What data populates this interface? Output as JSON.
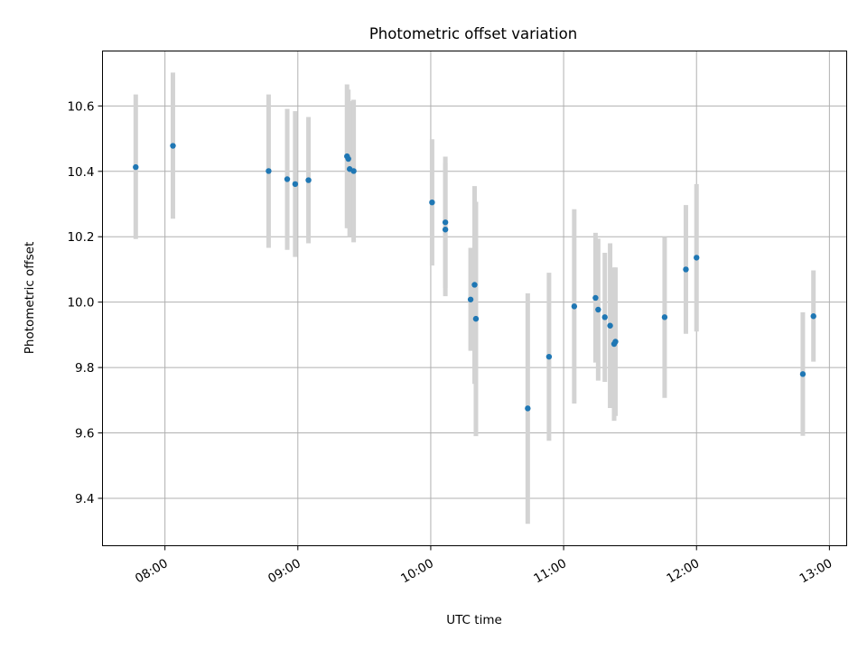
{
  "chart_data": {
    "type": "scatter",
    "title": "Photometric offset variation",
    "xlabel": "UTC time",
    "ylabel": "Photometric offset",
    "x_unit": "hours",
    "xlim": [
      7.53,
      13.13
    ],
    "ylim": [
      9.255,
      10.768
    ],
    "grid": true,
    "x_ticks": [
      {
        "value": 8.0,
        "label": "08:00"
      },
      {
        "value": 9.0,
        "label": "09:00"
      },
      {
        "value": 10.0,
        "label": "10:00"
      },
      {
        "value": 11.0,
        "label": "11:00"
      },
      {
        "value": 12.0,
        "label": "12:00"
      },
      {
        "value": 13.0,
        "label": "13:00"
      }
    ],
    "y_ticks": [
      {
        "value": 9.4,
        "label": "9.4"
      },
      {
        "value": 9.6,
        "label": "9.6"
      },
      {
        "value": 9.8,
        "label": "9.8"
      },
      {
        "value": 10.0,
        "label": "10.0"
      },
      {
        "value": 10.2,
        "label": "10.2"
      },
      {
        "value": 10.4,
        "label": "10.4"
      },
      {
        "value": 10.6,
        "label": "10.6"
      }
    ],
    "colors": {
      "point": "#1f77b4",
      "errorbar": "#d3d3d3"
    },
    "points": [
      {
        "x": 7.78,
        "y": 10.413,
        "ylow": 10.193,
        "yhigh": 10.635
      },
      {
        "x": 8.06,
        "y": 10.478,
        "ylow": 10.255,
        "yhigh": 10.702
      },
      {
        "x": 8.78,
        "y": 10.401,
        "ylow": 10.166,
        "yhigh": 10.635
      },
      {
        "x": 8.92,
        "y": 10.376,
        "ylow": 10.16,
        "yhigh": 10.591
      },
      {
        "x": 8.98,
        "y": 10.361,
        "ylow": 10.138,
        "yhigh": 10.584
      },
      {
        "x": 9.08,
        "y": 10.373,
        "ylow": 10.18,
        "yhigh": 10.566
      },
      {
        "x": 9.37,
        "y": 10.446,
        "ylow": 10.226,
        "yhigh": 10.666
      },
      {
        "x": 9.38,
        "y": 10.438,
        "ylow": 10.226,
        "yhigh": 10.65
      },
      {
        "x": 9.39,
        "y": 10.407,
        "ylow": 10.2,
        "yhigh": 10.615
      },
      {
        "x": 9.42,
        "y": 10.401,
        "ylow": 10.183,
        "yhigh": 10.619
      },
      {
        "x": 10.01,
        "y": 10.305,
        "ylow": 10.112,
        "yhigh": 10.498
      },
      {
        "x": 10.11,
        "y": 10.244,
        "ylow": 10.043,
        "yhigh": 10.445
      },
      {
        "x": 10.11,
        "y": 10.222,
        "ylow": 10.018,
        "yhigh": 10.426
      },
      {
        "x": 10.3,
        "y": 10.008,
        "ylow": 9.851,
        "yhigh": 10.166
      },
      {
        "x": 10.33,
        "y": 10.053,
        "ylow": 9.75,
        "yhigh": 10.355
      },
      {
        "x": 10.34,
        "y": 9.949,
        "ylow": 9.59,
        "yhigh": 10.307
      },
      {
        "x": 10.73,
        "y": 9.675,
        "ylow": 9.322,
        "yhigh": 10.027
      },
      {
        "x": 10.89,
        "y": 9.833,
        "ylow": 9.576,
        "yhigh": 10.09
      },
      {
        "x": 11.08,
        "y": 9.987,
        "ylow": 9.69,
        "yhigh": 10.284
      },
      {
        "x": 11.24,
        "y": 10.013,
        "ylow": 9.815,
        "yhigh": 10.212
      },
      {
        "x": 11.26,
        "y": 9.977,
        "ylow": 9.76,
        "yhigh": 10.194
      },
      {
        "x": 11.31,
        "y": 9.954,
        "ylow": 9.756,
        "yhigh": 10.151
      },
      {
        "x": 11.35,
        "y": 9.928,
        "ylow": 9.676,
        "yhigh": 10.18
      },
      {
        "x": 11.38,
        "y": 9.872,
        "ylow": 9.637,
        "yhigh": 10.106
      },
      {
        "x": 11.39,
        "y": 9.879,
        "ylow": 9.652,
        "yhigh": 10.106
      },
      {
        "x": 11.76,
        "y": 9.954,
        "ylow": 9.707,
        "yhigh": 10.2
      },
      {
        "x": 11.92,
        "y": 10.1,
        "ylow": 9.903,
        "yhigh": 10.297
      },
      {
        "x": 12.0,
        "y": 10.136,
        "ylow": 9.91,
        "yhigh": 10.361
      },
      {
        "x": 12.8,
        "y": 9.78,
        "ylow": 9.591,
        "yhigh": 9.969
      },
      {
        "x": 12.88,
        "y": 9.957,
        "ylow": 9.818,
        "yhigh": 10.097
      }
    ]
  }
}
